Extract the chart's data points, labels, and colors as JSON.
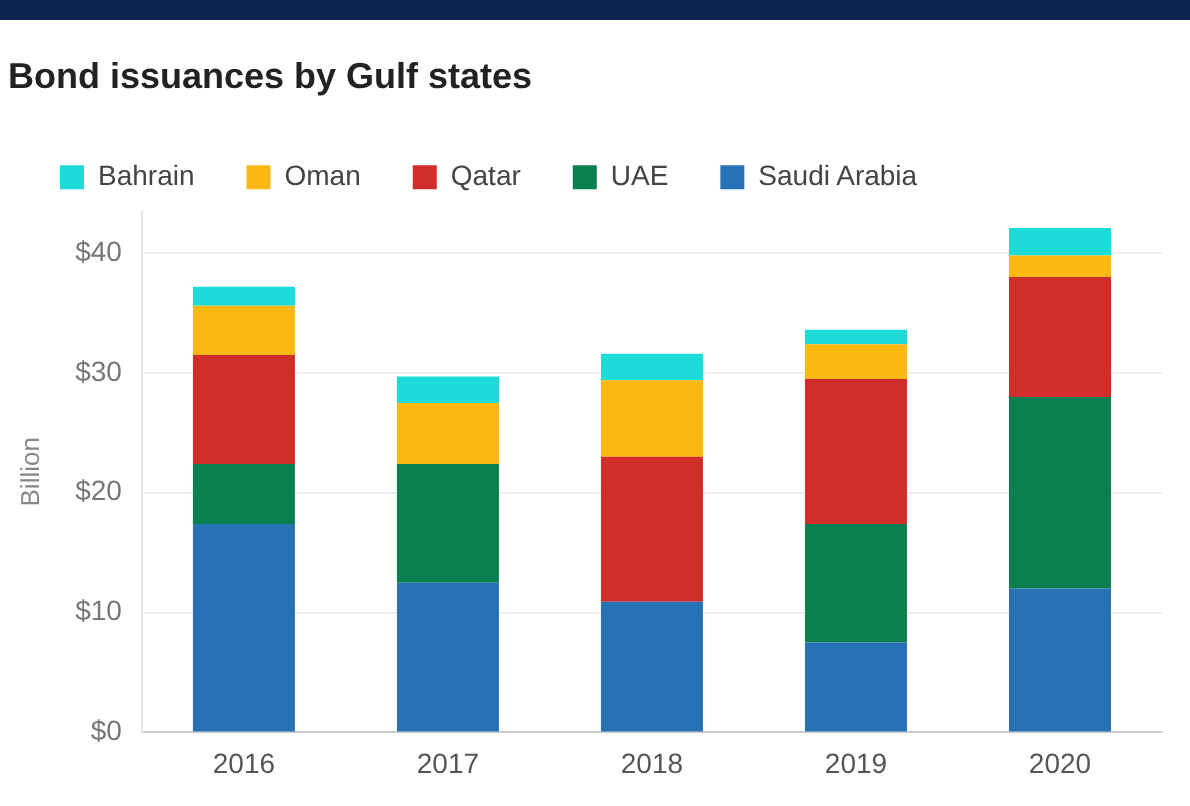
{
  "chart_data": {
    "type": "bar",
    "title": "Bond issuances by Gulf states",
    "ylabel": "Billion",
    "categories": [
      "2016",
      "2017",
      "2018",
      "2019",
      "2020"
    ],
    "series": [
      {
        "name": "Saudi Arabia",
        "color": "#2672b5",
        "values": [
          17.4,
          12.5,
          10.9,
          7.5,
          12
        ]
      },
      {
        "name": "UAE",
        "color": "#0a7f50",
        "values": [
          5,
          9.9,
          0,
          9.9,
          16
        ]
      },
      {
        "name": "Qatar",
        "color": "#d12d2b",
        "values": [
          9.1,
          0,
          12.1,
          12.1,
          10
        ]
      },
      {
        "name": "Oman",
        "color": "#fdb813",
        "values": [
          4.1,
          5.1,
          6.4,
          2.9,
          1.8
        ]
      },
      {
        "name": "Bahrain",
        "color": "#1ddbd9",
        "values": [
          1.6,
          2.2,
          2.2,
          1.2,
          2.3
        ]
      }
    ],
    "stacked": true,
    "ylim": [
      0,
      43.5
    ],
    "yticks": [
      {
        "value": 0,
        "label": "$0"
      },
      {
        "value": 10,
        "label": "$10"
      },
      {
        "value": 20,
        "label": "$20"
      },
      {
        "value": 30,
        "label": "$30"
      },
      {
        "value": 40,
        "label": "$40"
      }
    ],
    "grid": "y",
    "legend": "top left"
  }
}
